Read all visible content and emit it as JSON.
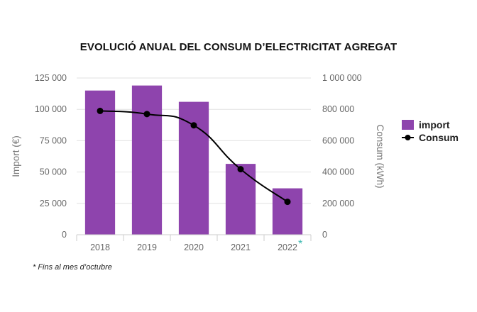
{
  "chart_data": {
    "type": "bar",
    "title": "EVOLUCIÓ ANUAL DEL CONSUM D’ELECTRICITAT AGREGAT",
    "categories": [
      "2018",
      "2019",
      "2020",
      "2021",
      "2022"
    ],
    "category_marker": {
      "2022": "*"
    },
    "series": [
      {
        "name": "import",
        "type": "bar",
        "axis": "left",
        "color": "#8e44ad",
        "values": [
          115000,
          119000,
          106000,
          56500,
          37000
        ]
      },
      {
        "name": "Consum",
        "type": "line",
        "axis": "right",
        "color": "#000000",
        "values": [
          790000,
          770000,
          698000,
          418000,
          210000
        ]
      }
    ],
    "ylabel_left": "Import (€)",
    "ylabel_right": "Consum (kWh)",
    "ylim_left": [
      0,
      125000
    ],
    "ylim_right": [
      0,
      1000000
    ],
    "yticks_left": [
      "0",
      "25 000",
      "50 000",
      "75 000",
      "100 000",
      "125 000"
    ],
    "yticks_right": [
      "0",
      "200 000",
      "400 000",
      "600 000",
      "800 000",
      "1 000 000"
    ],
    "legend_position": "right",
    "grid": true
  },
  "footnote": "* Fins al mes d’octubre"
}
